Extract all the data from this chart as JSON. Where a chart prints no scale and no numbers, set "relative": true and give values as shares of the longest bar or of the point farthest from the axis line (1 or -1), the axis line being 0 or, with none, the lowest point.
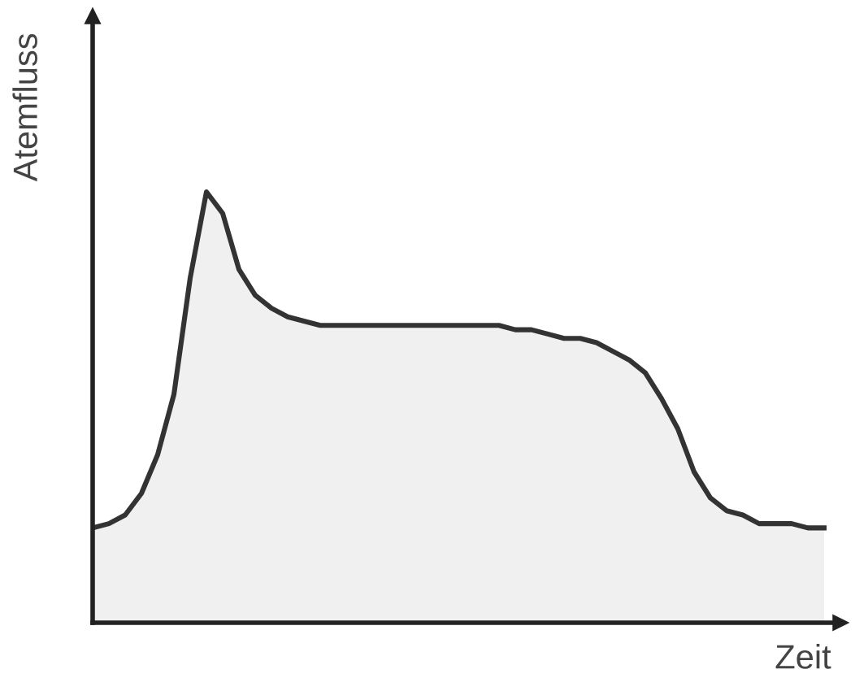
{
  "chart_data": {
    "type": "area",
    "relative": true,
    "xlabel": "Zeit",
    "ylabel": "Atemfluss",
    "categories": [
      null,
      null,
      null,
      null,
      null,
      null,
      null,
      null,
      null,
      null,
      null,
      null,
      null,
      null,
      null,
      null,
      null,
      null,
      null,
      null,
      null,
      null,
      null,
      null,
      null,
      null,
      null,
      null,
      null,
      null,
      null,
      null,
      null,
      null,
      null,
      null,
      null,
      null,
      null,
      null,
      null,
      null,
      null,
      null,
      null,
      null
    ],
    "series": [
      {
        "color": "#333333",
        "values": [
          0.22,
          0.23,
          0.25,
          0.3,
          0.39,
          0.53,
          0.8,
          1.0,
          0.95,
          0.82,
          0.76,
          0.73,
          0.71,
          0.7,
          0.69,
          0.69,
          0.69,
          0.69,
          0.69,
          0.69,
          0.69,
          0.69,
          0.69,
          0.69,
          0.69,
          0.69,
          0.68,
          0.68,
          0.67,
          0.66,
          0.66,
          0.65,
          0.63,
          0.61,
          0.58,
          0.52,
          0.45,
          0.35,
          0.29,
          0.26,
          0.25,
          0.23,
          0.23,
          0.23,
          0.22,
          0.22
        ]
      }
    ],
    "grid": false,
    "legend": false
  }
}
